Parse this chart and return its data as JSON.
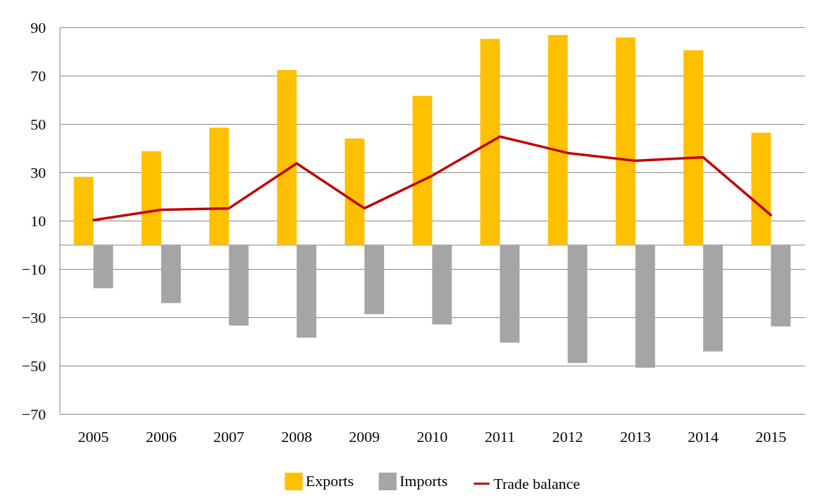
{
  "chart_data": {
    "type": "bar",
    "categories": [
      "2005",
      "2006",
      "2007",
      "2008",
      "2009",
      "2010",
      "2011",
      "2012",
      "2013",
      "2014",
      "2015"
    ],
    "series": [
      {
        "name": "Exports",
        "color": "#ffc000",
        "values": [
          28.1,
          38.7,
          48.5,
          72.3,
          44.0,
          61.7,
          85.2,
          86.8,
          85.8,
          80.5,
          46.4
        ]
      },
      {
        "name": "Imports",
        "color": "#a5a5a5",
        "values": [
          -18.0,
          -24.1,
          -33.4,
          -38.4,
          -28.7,
          -33.0,
          -40.5,
          -48.9,
          -50.9,
          -44.1,
          -33.8
        ]
      },
      {
        "name": "Trade balance",
        "type": "line",
        "color": "#c00000",
        "values": [
          10.2,
          14.5,
          15.1,
          33.7,
          15.1,
          28.6,
          44.8,
          38.0,
          34.8,
          36.2,
          12.3
        ]
      }
    ],
    "ylim": [
      -70,
      90
    ],
    "yticks": [
      -70,
      -50,
      -30,
      -10,
      10,
      30,
      50,
      70,
      90
    ],
    "grid": "y",
    "legend": "bottom",
    "marker": "none",
    "line_style": "solid"
  }
}
